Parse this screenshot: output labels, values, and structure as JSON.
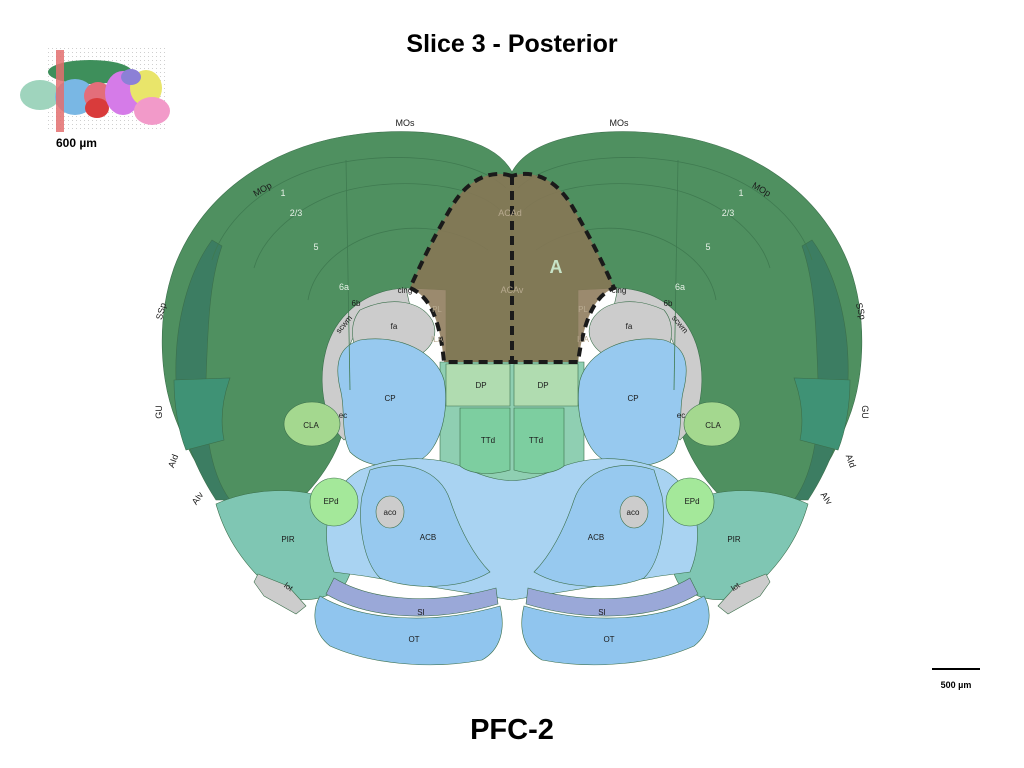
{
  "header": {
    "title": "Slice 3 - Posterior"
  },
  "footer": {
    "label": "PFC-2"
  },
  "inset": {
    "scale_label": "600 µm"
  },
  "scalebar": {
    "label": "500 µm"
  },
  "region_marker": "A",
  "labels": {
    "mos": "MOs",
    "mop": "MOp",
    "l1": "1",
    "l23": "2/3",
    "l5": "5",
    "l6a": "6a",
    "l6b": "6b",
    "ssp": "SSp",
    "gu": "GU",
    "aid": "AId",
    "aiv": "AIv",
    "acad": "ACAd",
    "acav": "ACAv",
    "pl": "PL",
    "ila": "ILA",
    "cing": "cing",
    "fa": "fa",
    "scwm": "scwm",
    "ec": "ec",
    "cla": "CLA",
    "cp": "CP",
    "dp": "DP",
    "ttd": "TTd",
    "epd": "EPd",
    "aco": "aco",
    "acb": "ACB",
    "pir": "PIR",
    "lot": "lot",
    "si": "SI",
    "ot": "OT"
  },
  "colors": {
    "isocortex": "#4f9060",
    "cortex_lines": "#3f7a50",
    "lateral_cortex": "#3c7d62",
    "insular": "#3f9275",
    "claustrum": "#a4d88f",
    "olfactory": "#7fc6b3",
    "fiber_tracts": "#cccccc",
    "striatum": "#97c9ef",
    "striatum_light": "#a9d3f2",
    "dp": "#b0dcb0",
    "ttd": "#7dcea0",
    "si": "#9aa8d8",
    "highlight_fill": "#8a7555",
    "highlight_border": "#1a1a1a"
  }
}
